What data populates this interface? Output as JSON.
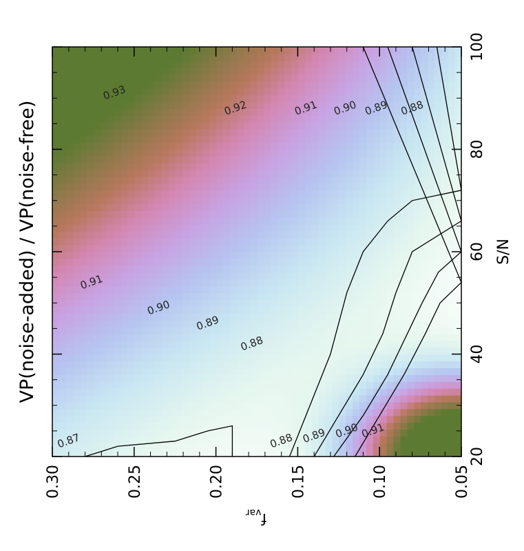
{
  "chart_data": {
    "type": "heatmap",
    "title": "VP(noise-added) / VP(noise-free)",
    "xlabel": "S/N",
    "ylabel": "f",
    "ylabel_sub": "var",
    "xlim": [
      20,
      100
    ],
    "ylim": [
      0.05,
      0.3
    ],
    "x_ticks": [
      20,
      40,
      60,
      80,
      100
    ],
    "x_tick_labels": [
      "20",
      "40",
      "60",
      "80",
      "100"
    ],
    "y_ticks": [
      0.3,
      0.25,
      0.2,
      0.15,
      0.1,
      0.05
    ],
    "y_tick_labels": [
      "0.30",
      "0.25",
      "0.20",
      "0.15",
      "0.10",
      "0.05"
    ],
    "orientation": "rotated 90° counter-clockwise",
    "grid": false,
    "legend": "none",
    "color_stops": [
      {
        "value": 0.87,
        "color": "#ffffff"
      },
      {
        "value": 0.88,
        "color": "#e6f7ef"
      },
      {
        "value": 0.89,
        "color": "#c8e6f2"
      },
      {
        "value": 0.9,
        "color": "#b6c4f0"
      },
      {
        "value": 0.91,
        "color": "#c8a2e2"
      },
      {
        "value": 0.92,
        "color": "#d487b2"
      },
      {
        "value": 0.93,
        "color": "#b8785e"
      },
      {
        "value": 0.95,
        "color": "#5c7a32"
      }
    ],
    "contours": [
      {
        "level": 0.87,
        "label": "0.87",
        "points": [
          [
            20,
            0.19
          ],
          [
            26,
            0.19
          ],
          [
            25,
            0.205
          ],
          [
            24,
            0.215
          ],
          [
            23,
            0.225
          ],
          [
            22,
            0.26
          ],
          [
            21,
            0.27
          ],
          [
            20,
            0.28
          ]
        ]
      },
      {
        "level": 0.88,
        "label": "0.88",
        "points": [
          [
            20,
            0.155
          ],
          [
            28,
            0.145
          ],
          [
            40,
            0.13
          ],
          [
            52,
            0.12
          ],
          [
            60,
            0.11
          ],
          [
            66,
            0.095
          ],
          [
            70,
            0.08
          ],
          [
            72,
            0.05
          ],
          [
            100,
            0.065
          ]
        ]
      },
      {
        "level": 0.89,
        "label": "0.89",
        "points": [
          [
            20,
            0.14
          ],
          [
            28,
            0.125
          ],
          [
            36,
            0.11
          ],
          [
            44,
            0.098
          ],
          [
            52,
            0.09
          ],
          [
            60,
            0.08
          ],
          [
            66,
            0.05
          ],
          [
            100,
            0.08
          ]
        ]
      },
      {
        "level": 0.9,
        "label": "0.90",
        "points": [
          [
            20,
            0.128
          ],
          [
            28,
            0.11
          ],
          [
            36,
            0.095
          ],
          [
            44,
            0.083
          ],
          [
            50,
            0.074
          ],
          [
            56,
            0.064
          ],
          [
            60,
            0.05
          ],
          [
            100,
            0.095
          ]
        ]
      },
      {
        "level": 0.91,
        "label": "0.91",
        "points": [
          [
            20,
            0.115
          ],
          [
            28,
            0.1
          ],
          [
            36,
            0.085
          ],
          [
            44,
            0.072
          ],
          [
            50,
            0.063
          ],
          [
            54,
            0.05
          ],
          [
            100,
            0.11
          ]
        ]
      }
    ],
    "contour_labels": [
      {
        "text": "0.87",
        "x": 23,
        "y": 0.29
      },
      {
        "text": "0.88",
        "x": 23,
        "y": 0.16
      },
      {
        "text": "0.89",
        "x": 24,
        "y": 0.14
      },
      {
        "text": "0.90",
        "x": 25,
        "y": 0.12
      },
      {
        "text": "0.91",
        "x": 25,
        "y": 0.104
      },
      {
        "text": "0.88",
        "x": 42,
        "y": 0.178
      },
      {
        "text": "0.89",
        "x": 46,
        "y": 0.205
      },
      {
        "text": "0.90",
        "x": 49,
        "y": 0.235
      },
      {
        "text": "0.91",
        "x": 54,
        "y": 0.276
      },
      {
        "text": "0.88",
        "x": 88,
        "y": 0.08
      },
      {
        "text": "0.89",
        "x": 88,
        "y": 0.102
      },
      {
        "text": "0.90",
        "x": 88,
        "y": 0.121
      },
      {
        "text": "0.91",
        "x": 88,
        "y": 0.145
      },
      {
        "text": "0.92",
        "x": 88,
        "y": 0.188
      },
      {
        "text": "0.93",
        "x": 91,
        "y": 0.262
      }
    ]
  }
}
